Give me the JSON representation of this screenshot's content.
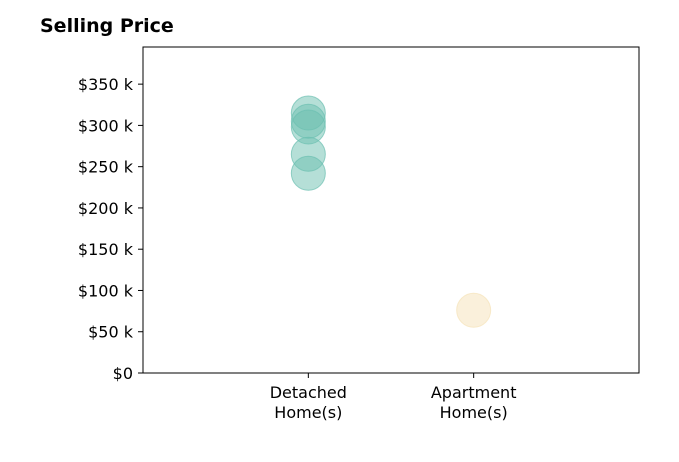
{
  "chart_data": {
    "type": "scatter",
    "title": "Selling Price",
    "xlabel": "",
    "ylabel": "",
    "categories": [
      {
        "line1": "Detached",
        "line2": "Home(s)"
      },
      {
        "line1": "Apartment",
        "line2": "Home(s)"
      }
    ],
    "xlim": [
      0,
      3
    ],
    "ylim": [
      0,
      395000
    ],
    "yticks": [
      0,
      50000,
      100000,
      150000,
      200000,
      250000,
      300000,
      350000
    ],
    "ytick_labels": [
      "$0",
      "$50 k",
      "$100 k",
      "$150 k",
      "$200 k",
      "$250 k",
      "$300 k",
      "$350 k"
    ],
    "grid": false,
    "series": [
      {
        "category_index": 0,
        "color": "#6bbfb0",
        "values": [
          315000,
          305000,
          298000,
          265000,
          242000
        ]
      },
      {
        "category_index": 1,
        "color": "#f5e2b8",
        "values": [
          76000
        ]
      }
    ]
  }
}
